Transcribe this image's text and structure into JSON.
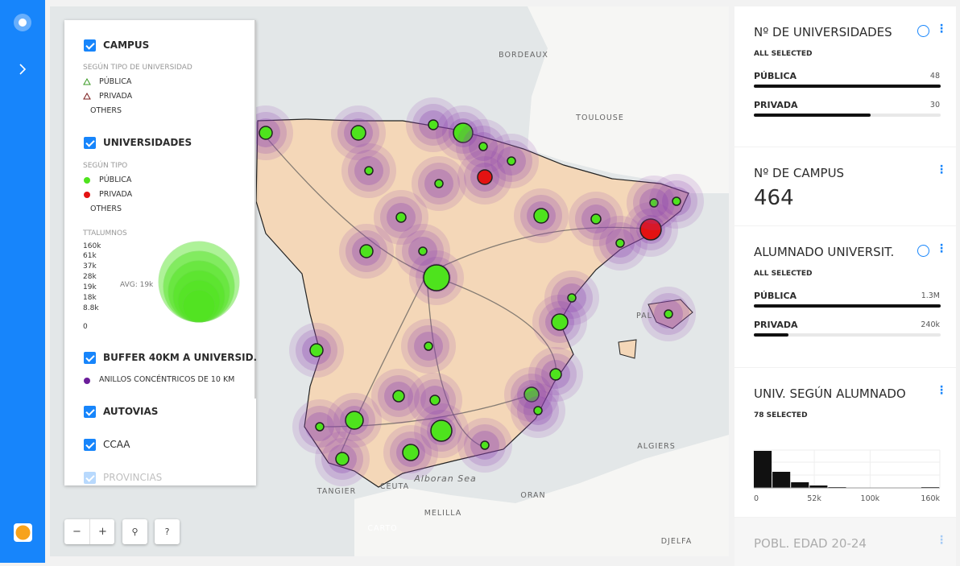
{
  "legend": {
    "layers": [
      {
        "title": "CAMPUS",
        "subtitle": "SEGÚN TIPO DE UNIVERSIDAD",
        "items": [
          "PÚBLICA",
          "PRIVADA",
          "OTHERS"
        ]
      },
      {
        "title": "UNIVERSIDADES",
        "subtitle": "SEGÚN TIPO",
        "items": [
          "PÚBLICA",
          "PRIVADA",
          "OTHERS"
        ]
      },
      {
        "title": "BUFFER 40KM A UNIVERSID...",
        "items": [
          "ANILLOS CONCÉNTRICOS DE 10 KM"
        ]
      },
      {
        "title": "AUTOVIAS"
      },
      {
        "title": "CCAA"
      },
      {
        "title": "PROVINCIAS"
      }
    ],
    "bubble": {
      "title": "TTALUMNOS",
      "labels": [
        "160k",
        "61k",
        "37k",
        "28k",
        "19k",
        "18k",
        "8.8k",
        "0"
      ],
      "avg": "AVG: 19k"
    }
  },
  "map": {
    "labels": [
      "BORDEAUX",
      "TOULOUSE",
      "ALGIERS",
      "Alboran Sea",
      "TANGIER",
      "CEUTA",
      "MELILLA",
      "ORAN",
      "PAL",
      "DJELFA",
      "CARTO"
    ]
  },
  "widgets": [
    {
      "title": "Nº DE UNIVERSIDADES",
      "status": "ALL SELECTED",
      "rows": [
        {
          "name": "PÚBLICA",
          "value": 48
        },
        {
          "name": "PRIVADA",
          "value": 30
        }
      ]
    },
    {
      "title": "Nº DE CAMPUS",
      "value": 464
    },
    {
      "title": "ALUMNADO UNIVERSIT.",
      "status": "ALL SELECTED",
      "rows": [
        {
          "name": "PÚBLICA",
          "value": 1300000,
          "value_label": "1.3M"
        },
        {
          "name": "PRIVADA",
          "value": 240000,
          "value_label": "240k"
        }
      ]
    },
    {
      "title": "UNIV. SEGÚN ALUMNADO",
      "status": "78 SELECTED",
      "bins": [
        0,
        16000,
        32000,
        48000,
        64000,
        80000,
        96000,
        112000,
        128000,
        144000,
        160000
      ],
      "counts": [
        46,
        20,
        7,
        3,
        1,
        0,
        0,
        0,
        0,
        1
      ],
      "xlim": [
        0,
        160000
      ],
      "xticks": [
        0,
        {
          "value": 52000,
          "label": "52k"
        },
        {
          "value": 100000,
          "label": "100k"
        },
        {
          "value": 160000,
          "label": "160k"
        }
      ]
    },
    {
      "title": "POBL. EDAD 20-24"
    }
  ]
}
